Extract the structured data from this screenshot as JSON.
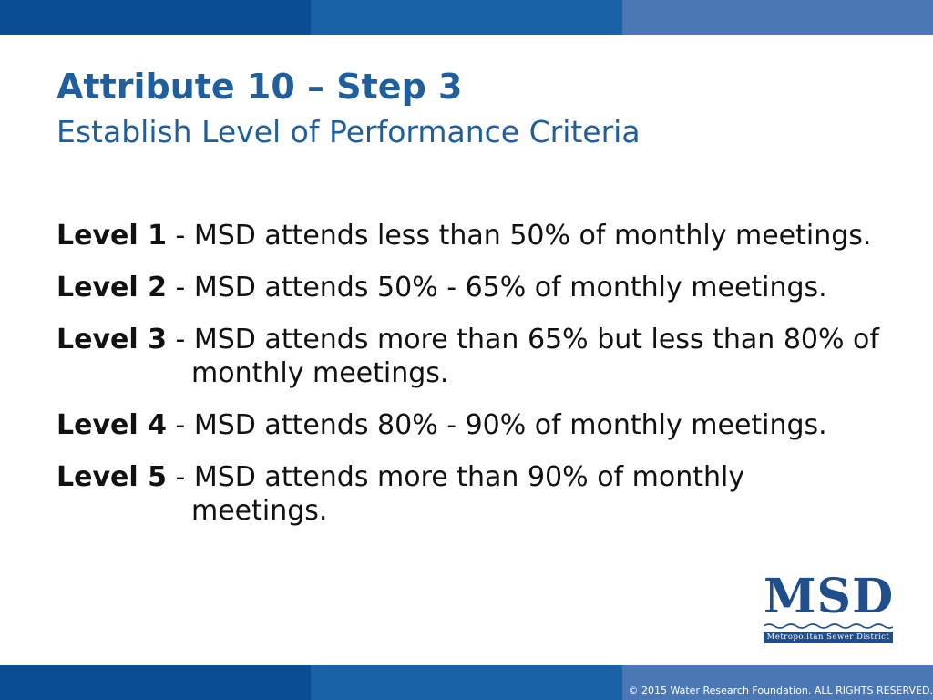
{
  "slide": {
    "title": "Attribute 10 – Step 3",
    "subtitle": "Establish Level of Performance Criteria"
  },
  "levels": [
    {
      "label": "Level 1",
      "text": " - MSD attends less than 50% of monthly meetings."
    },
    {
      "label": "Level 2",
      "text": " - MSD attends 50% - 65% of monthly meetings."
    },
    {
      "label": "Level 3",
      "text": " - MSD attends more than 65% but less than 80% of monthly meetings."
    },
    {
      "label": "Level 4",
      "text": " - MSD attends 80% - 90% of monthly meetings."
    },
    {
      "label": "Level 5",
      "text": " - MSD attends more than 90% of monthly meetings."
    }
  ],
  "logo": {
    "name": "MSD",
    "full_name": "Metropolitan Sewer District"
  },
  "footer": {
    "copyright": "© 2015 Water Research Foundation. ALL RIGHTS RESERVED."
  },
  "colors": {
    "title": "#1f5f9e",
    "band_dark": "#0b4d93",
    "band_mid": "#1a62a8",
    "band_light": "#4b78b5",
    "logo": "#1f4e8c"
  }
}
